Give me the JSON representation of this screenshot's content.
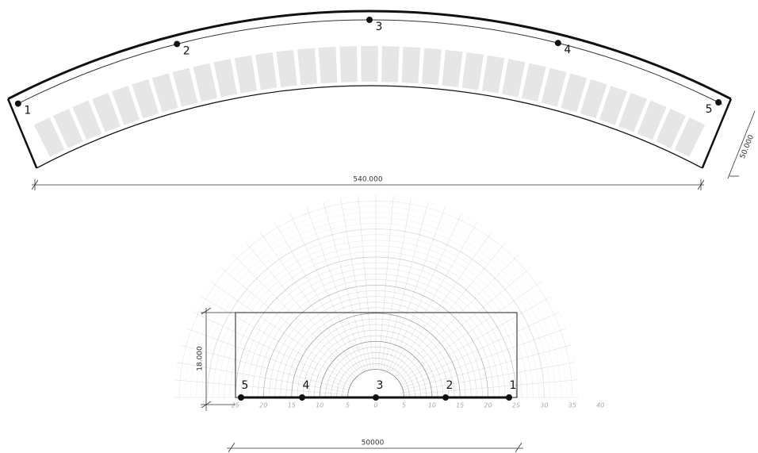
{
  "top_plan": {
    "points": [
      "1",
      "2",
      "3",
      "4",
      "5"
    ],
    "width_dimension": "540.000",
    "depth_dimension": "50.000"
  },
  "section": {
    "points": [
      "5",
      "4",
      "3",
      "2",
      "1"
    ],
    "axis_labels": [
      "25",
      "20",
      "15",
      "10",
      "5",
      "0",
      "5",
      "10",
      "15",
      "20",
      "25",
      "30",
      "35",
      "40"
    ],
    "height_dimension": "18.000",
    "width_dimension": "50000"
  }
}
